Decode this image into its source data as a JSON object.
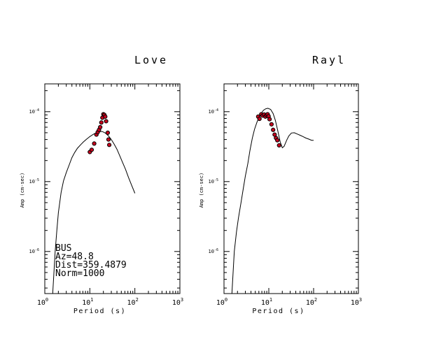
{
  "chart_data": [
    {
      "type": "line",
      "title": "Love",
      "xlabel": "Period (s)",
      "ylabel": "Amp (cm-sec)",
      "xscale": "log",
      "yscale": "log",
      "xlim": [
        1,
        1000
      ],
      "ylim": [
        2.5e-07,
        0.00025
      ],
      "x_tick_labels": [
        {
          "base": "10",
          "exp": "0"
        },
        {
          "base": "10",
          "exp": "1"
        },
        {
          "base": "10",
          "exp": "2"
        },
        {
          "base": "10",
          "exp": "3"
        }
      ],
      "y_tick_labels": [
        {
          "base": "10",
          "exp": "-4",
          "value": 0.0001
        },
        {
          "base": "10",
          "exp": "-5",
          "value": 1e-05
        },
        {
          "base": "10",
          "exp": "-6",
          "value": 1e-06
        }
      ],
      "annotation_lines": [
        "BUS",
        "Az=48.8",
        "Dist=359.4879",
        "Norm=1000"
      ],
      "series": [
        {
          "kind": "line",
          "x": [
            1.5,
            1.7,
            1.85,
            2.0,
            2.3,
            2.6,
            3.0,
            3.5,
            4.0,
            4.6,
            5.3,
            6.2,
            7.2,
            8.5,
            10.0,
            12.0,
            14.0,
            16.5,
            19.0,
            22.0,
            26.0,
            30.0,
            35.0,
            40.0,
            46.0,
            53.0,
            62.0,
            72.0,
            84.0,
            100.0
          ],
          "y": [
            2.5e-07,
            1e-06,
            2e-06,
            3.6e-06,
            7e-06,
            1.02e-05,
            1.35e-05,
            1.75e-05,
            2.2e-05,
            2.6e-05,
            3e-05,
            3.35e-05,
            3.7e-05,
            4.05e-05,
            4.4e-05,
            4.75e-05,
            5e-05,
            5.2e-05,
            5.2e-05,
            4.95e-05,
            4.5e-05,
            4e-05,
            3.4e-05,
            2.9e-05,
            2.35e-05,
            1.9e-05,
            1.5e-05,
            1.15e-05,
            9e-06,
            6.8e-06
          ]
        },
        {
          "kind": "scatter",
          "x": [
            10.0,
            11.0,
            12.5,
            14.0,
            15.0,
            16.0,
            17.0,
            18.0,
            19.0,
            20.0,
            21.0,
            22.0,
            23.0,
            25.0,
            26.0,
            27.0
          ],
          "y": [
            2.65e-05,
            2.85e-05,
            3.5e-05,
            4.7e-05,
            5.1e-05,
            5.5e-05,
            6e-05,
            7e-05,
            8.2e-05,
            9.2e-05,
            9e-05,
            8.5e-05,
            7.3e-05,
            5e-05,
            4e-05,
            3.35e-05
          ]
        }
      ]
    },
    {
      "type": "line",
      "title": "Rayl",
      "xlabel": "Period (s)",
      "ylabel": "Amp (cm-sec)",
      "xscale": "log",
      "yscale": "log",
      "xlim": [
        1,
        1000
      ],
      "ylim": [
        2.5e-07,
        0.00025
      ],
      "x_tick_labels": [
        {
          "base": "10",
          "exp": "0"
        },
        {
          "base": "10",
          "exp": "1"
        },
        {
          "base": "10",
          "exp": "2"
        },
        {
          "base": "10",
          "exp": "3"
        }
      ],
      "y_tick_labels": [
        {
          "base": "10",
          "exp": "-4",
          "value": 0.0001
        },
        {
          "base": "10",
          "exp": "-5",
          "value": 1e-05
        },
        {
          "base": "10",
          "exp": "-6",
          "value": 1e-06
        }
      ],
      "series": [
        {
          "kind": "line",
          "x": [
            1.5,
            1.7,
            1.9,
            2.1,
            2.4,
            2.7,
            3.0,
            3.4,
            3.8,
            4.3,
            4.8,
            5.4,
            6.0,
            6.8,
            7.6,
            8.5,
            9.5,
            11.0,
            12.5,
            14.0,
            16.0,
            18.0,
            20.0,
            22.0,
            25.0,
            28.0,
            32.0,
            37.0,
            43.0,
            50.0,
            58.0,
            67.0,
            78.0,
            90.0,
            100.0
          ],
          "y": [
            2.5e-07,
            1e-06,
            1.9e-06,
            3e-06,
            5e-06,
            8e-06,
            1.2e-05,
            1.8e-05,
            2.8e-05,
            4.2e-05,
            5.6e-05,
            7e-05,
            8.3e-05,
            9.5e-05,
            0.000105,
            0.00011,
            0.000112,
            0.000108,
            9.4e-05,
            7.5e-05,
            5.2e-05,
            3.7e-05,
            3.05e-05,
            3.2e-05,
            3.9e-05,
            4.5e-05,
            4.95e-05,
            5e-05,
            4.8e-05,
            4.6e-05,
            4.4e-05,
            4.2e-05,
            4.05e-05,
            3.9e-05,
            3.9e-05
          ]
        },
        {
          "kind": "scatter",
          "x": [
            5.8,
            6.2,
            6.8,
            7.3,
            7.9,
            8.4,
            8.9,
            9.4,
            9.9,
            10.4,
            11.5,
            12.5,
            13.5,
            14.5,
            15.5,
            17.0
          ],
          "y": [
            8.5e-05,
            7.9e-05,
            9.2e-05,
            8.8e-05,
            9.1e-05,
            8.5e-05,
            8.9e-05,
            9.2e-05,
            8.6e-05,
            7.8e-05,
            6.6e-05,
            5.5e-05,
            4.7e-05,
            4.2e-05,
            3.9e-05,
            3.3e-05
          ]
        }
      ]
    }
  ]
}
